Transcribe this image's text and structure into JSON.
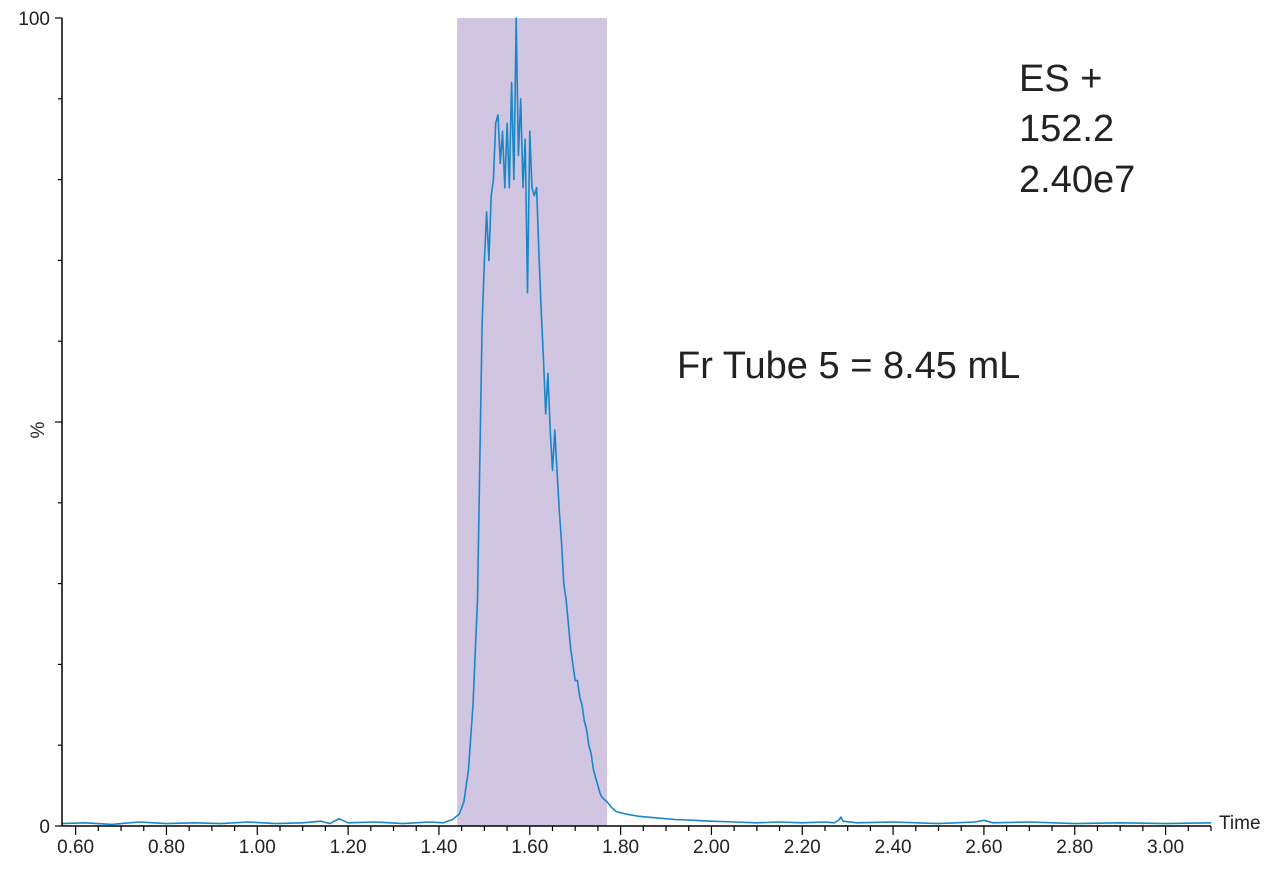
{
  "chart_data": {
    "type": "line",
    "ylabel": "%",
    "xlabel": "Time",
    "xlim": [
      0.57,
      3.1
    ],
    "ylim": [
      0,
      100
    ],
    "x_ticks": [
      "0.60",
      "0.80",
      "1.00",
      "1.20",
      "1.40",
      "1.60",
      "1.80",
      "2.00",
      "2.20",
      "2.40",
      "2.60",
      "2.80",
      "3.00"
    ],
    "y_ticks": [
      "0",
      "100"
    ],
    "fraction_window": {
      "start": 1.44,
      "end": 1.77,
      "color": "#d0c6e1"
    },
    "series": [
      {
        "color": "#1a86c7",
        "points": [
          [
            0.57,
            0.3
          ],
          [
            0.62,
            0.4
          ],
          [
            0.68,
            0.2
          ],
          [
            0.74,
            0.5
          ],
          [
            0.8,
            0.3
          ],
          [
            0.86,
            0.4
          ],
          [
            0.92,
            0.3
          ],
          [
            0.98,
            0.5
          ],
          [
            1.04,
            0.3
          ],
          [
            1.1,
            0.4
          ],
          [
            1.14,
            0.6
          ],
          [
            1.16,
            0.3
          ],
          [
            1.18,
            0.9
          ],
          [
            1.2,
            0.4
          ],
          [
            1.26,
            0.5
          ],
          [
            1.32,
            0.3
          ],
          [
            1.38,
            0.5
          ],
          [
            1.41,
            0.4
          ],
          [
            1.43,
            0.8
          ],
          [
            1.445,
            1.5
          ],
          [
            1.455,
            3
          ],
          [
            1.465,
            7
          ],
          [
            1.475,
            15
          ],
          [
            1.485,
            28
          ],
          [
            1.49,
            45
          ],
          [
            1.495,
            62
          ],
          [
            1.5,
            70
          ],
          [
            1.505,
            76
          ],
          [
            1.51,
            70
          ],
          [
            1.515,
            78
          ],
          [
            1.52,
            80
          ],
          [
            1.525,
            87
          ],
          [
            1.53,
            88
          ],
          [
            1.535,
            82
          ],
          [
            1.54,
            86
          ],
          [
            1.545,
            79
          ],
          [
            1.55,
            87
          ],
          [
            1.555,
            79
          ],
          [
            1.56,
            92
          ],
          [
            1.565,
            80
          ],
          [
            1.57,
            100
          ],
          [
            1.575,
            83
          ],
          [
            1.58,
            90
          ],
          [
            1.585,
            79
          ],
          [
            1.59,
            85
          ],
          [
            1.595,
            66
          ],
          [
            1.6,
            86
          ],
          [
            1.605,
            79
          ],
          [
            1.61,
            78
          ],
          [
            1.615,
            79
          ],
          [
            1.62,
            71
          ],
          [
            1.625,
            64
          ],
          [
            1.63,
            58
          ],
          [
            1.635,
            51
          ],
          [
            1.64,
            56
          ],
          [
            1.645,
            49
          ],
          [
            1.65,
            44
          ],
          [
            1.655,
            49
          ],
          [
            1.66,
            44
          ],
          [
            1.665,
            39
          ],
          [
            1.67,
            35
          ],
          [
            1.675,
            30
          ],
          [
            1.68,
            28
          ],
          [
            1.685,
            25
          ],
          [
            1.69,
            22
          ],
          [
            1.695,
            20
          ],
          [
            1.7,
            18
          ],
          [
            1.705,
            18
          ],
          [
            1.71,
            16
          ],
          [
            1.715,
            15
          ],
          [
            1.72,
            13
          ],
          [
            1.725,
            12
          ],
          [
            1.73,
            10
          ],
          [
            1.735,
            9
          ],
          [
            1.74,
            7
          ],
          [
            1.745,
            6
          ],
          [
            1.75,
            5
          ],
          [
            1.755,
            4
          ],
          [
            1.76,
            3.5
          ],
          [
            1.77,
            3
          ],
          [
            1.78,
            2.3
          ],
          [
            1.79,
            1.8
          ],
          [
            1.81,
            1.5
          ],
          [
            1.84,
            1.2
          ],
          [
            1.88,
            1.0
          ],
          [
            1.92,
            0.8
          ],
          [
            1.96,
            0.7
          ],
          [
            2.0,
            0.6
          ],
          [
            2.05,
            0.5
          ],
          [
            2.1,
            0.4
          ],
          [
            2.15,
            0.5
          ],
          [
            2.2,
            0.4
          ],
          [
            2.25,
            0.5
          ],
          [
            2.27,
            0.4
          ],
          [
            2.28,
            0.7
          ],
          [
            2.285,
            1.1
          ],
          [
            2.29,
            0.6
          ],
          [
            2.32,
            0.4
          ],
          [
            2.4,
            0.5
          ],
          [
            2.5,
            0.3
          ],
          [
            2.58,
            0.5
          ],
          [
            2.6,
            0.7
          ],
          [
            2.62,
            0.4
          ],
          [
            2.7,
            0.5
          ],
          [
            2.8,
            0.3
          ],
          [
            2.9,
            0.4
          ],
          [
            3.0,
            0.3
          ],
          [
            3.1,
            0.4
          ]
        ]
      }
    ],
    "annotations": {
      "ion_mode": "ES +",
      "mass": "152.2",
      "intensity": "2.40e7",
      "fraction": "Fr Tube 5 = 8.45 mL"
    }
  }
}
